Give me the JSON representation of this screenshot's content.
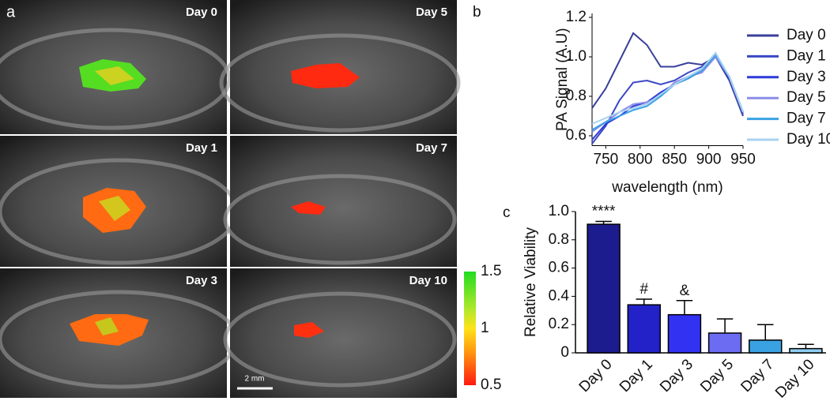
{
  "panel_a": {
    "panel_label": "a",
    "images": [
      "Day 0",
      "Day 5",
      "Day 1",
      "Day 7",
      "Day 3",
      "Day 10"
    ],
    "scale_bar": "2 mm",
    "colorbar": {
      "lim": [
        0.5,
        1.5
      ],
      "ticks": [
        1.5,
        1,
        0.5
      ]
    }
  },
  "chart_data": [
    {
      "type": "line",
      "panel_label": "b",
      "ylabel": "PA Signal (A.U)",
      "xlabel": "wavelength (nm)",
      "x": [
        730,
        750,
        770,
        790,
        810,
        830,
        850,
        870,
        890,
        910,
        930,
        950
      ],
      "xlim": [
        730,
        950
      ],
      "xticks": [
        750,
        800,
        850,
        900,
        950
      ],
      "ylim": [
        0.55,
        1.22
      ],
      "yticks": [
        0.6,
        0.8,
        {
          "value": 1,
          "label": "1.0"
        },
        1.2
      ],
      "series": [
        {
          "name": "Day 0",
          "color": "#3a3f9a",
          "values": [
            0.74,
            0.84,
            0.98,
            1.12,
            1.06,
            0.95,
            0.95,
            0.97,
            0.96,
            1.0,
            0.88,
            0.7
          ]
        },
        {
          "name": "Day 1",
          "color": "#3947c4",
          "values": [
            0.56,
            0.65,
            0.78,
            0.87,
            0.88,
            0.86,
            0.88,
            0.92,
            0.95,
            1.0,
            0.89,
            0.71
          ]
        },
        {
          "name": "Day 3",
          "color": "#2d3ad8",
          "values": [
            0.58,
            0.66,
            0.7,
            0.75,
            0.77,
            0.82,
            0.86,
            0.89,
            0.93,
            1.0,
            0.9,
            0.72
          ]
        },
        {
          "name": "Day 5",
          "color": "#8b8ee8",
          "values": [
            0.62,
            0.67,
            0.72,
            0.76,
            0.77,
            0.8,
            0.87,
            0.9,
            0.92,
            1.0,
            0.9,
            0.72
          ]
        },
        {
          "name": "Day 7",
          "color": "#3aa2e2",
          "values": [
            0.63,
            0.67,
            0.7,
            0.73,
            0.75,
            0.8,
            0.86,
            0.89,
            0.93,
            1.01,
            0.9,
            0.72
          ]
        },
        {
          "name": "Day 10",
          "color": "#a9d2f0",
          "values": [
            0.66,
            0.69,
            0.72,
            0.74,
            0.76,
            0.81,
            0.86,
            0.9,
            0.94,
            1.02,
            0.9,
            0.72
          ]
        }
      ]
    },
    {
      "type": "bar",
      "panel_label": "c",
      "ylabel": "Relative Viability",
      "categories": [
        "Day 0",
        "Day 1",
        "Day 3",
        "Day 5",
        "Day 7",
        "Day 10"
      ],
      "values": [
        0.91,
        0.34,
        0.27,
        0.14,
        0.09,
        0.03
      ],
      "errors": [
        0.02,
        0.04,
        0.1,
        0.1,
        0.11,
        0.03
      ],
      "colors": [
        "#1c1c8e",
        "#2222c8",
        "#3232f2",
        "#6b6cf2",
        "#3aa2e2",
        "#8fcdf2"
      ],
      "annotations": [
        "****",
        "#",
        "&",
        null,
        null,
        null
      ],
      "ylim": [
        0,
        1
      ],
      "yticks": [
        0,
        0.2,
        0.4,
        0.6,
        0.8,
        {
          "value": 1,
          "label": "1.0"
        }
      ]
    }
  ]
}
